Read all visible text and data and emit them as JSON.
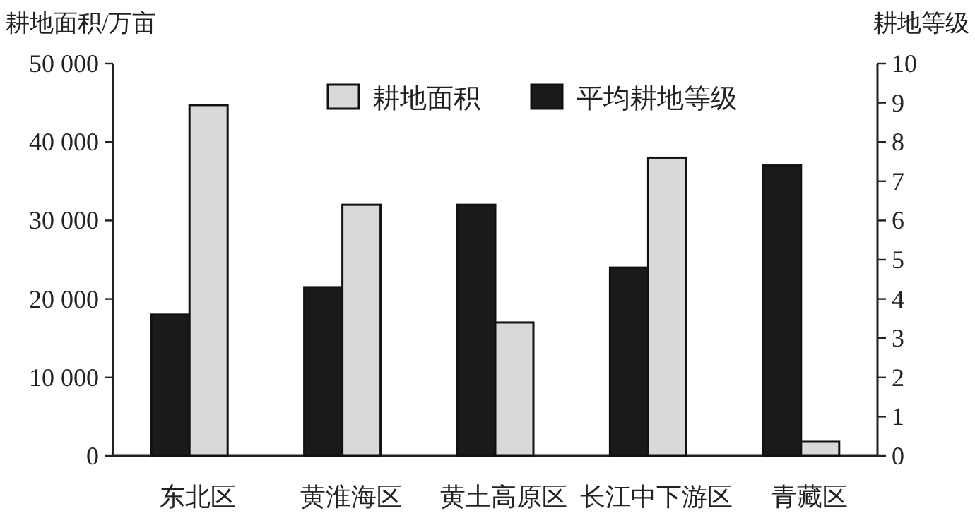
{
  "chart_data": {
    "type": "bar",
    "ylabel": "耕地面积/万亩",
    "y2label": "耕地等级",
    "categories": [
      "东北区",
      "黄淮海区",
      "黄土高原区",
      "长江中下游区",
      "青藏区"
    ],
    "series": [
      {
        "name": "平均耕地等级",
        "color": "#1a1a1a",
        "axis": "y2",
        "values": [
          3.6,
          4.3,
          6.4,
          4.8,
          7.4
        ]
      },
      {
        "name": "耕地面积",
        "color": "#d9d9d9",
        "values": [
          44700,
          32000,
          17000,
          38000,
          1800
        ]
      }
    ],
    "ylim": [
      0,
      50000
    ],
    "yticks": [
      0,
      {
        "value": 10000,
        "label": "10 000"
      },
      {
        "value": 20000,
        "label": "20 000"
      },
      {
        "value": 30000,
        "label": "30 000"
      },
      {
        "value": 40000,
        "label": "40 000"
      },
      {
        "value": 50000,
        "label": "50 000"
      }
    ],
    "y2lim": [
      0,
      10
    ],
    "y2ticks": [
      0,
      1,
      2,
      3,
      4,
      5,
      6,
      7,
      8,
      9,
      10
    ],
    "grid": false,
    "legend": "top right"
  }
}
